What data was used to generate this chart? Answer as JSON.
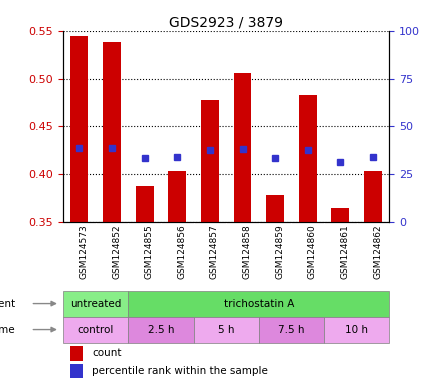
{
  "title": "GDS2923 / 3879",
  "samples": [
    "GSM124573",
    "GSM124852",
    "GSM124855",
    "GSM124856",
    "GSM124857",
    "GSM124858",
    "GSM124859",
    "GSM124860",
    "GSM124861",
    "GSM124862"
  ],
  "bar_values": [
    0.545,
    0.538,
    0.388,
    0.403,
    0.478,
    0.506,
    0.378,
    0.483,
    0.365,
    0.403
  ],
  "bar_base": 0.35,
  "percentile_values": [
    0.427,
    0.428,
    0.417,
    0.418,
    0.425,
    0.426,
    0.417,
    0.425,
    0.413,
    0.418
  ],
  "ylim_left": [
    0.35,
    0.55
  ],
  "ylim_right": [
    0,
    100
  ],
  "yticks_left": [
    0.35,
    0.4,
    0.45,
    0.5,
    0.55
  ],
  "yticks_right": [
    0,
    25,
    50,
    75,
    100
  ],
  "bar_color": "#cc0000",
  "dot_color": "#3333cc",
  "grid_color": "#000000",
  "agent_row": [
    {
      "label": "untreated",
      "span": [
        0,
        2
      ],
      "color": "#88ee88"
    },
    {
      "label": "trichostatin A",
      "span": [
        2,
        10
      ],
      "color": "#66dd66"
    }
  ],
  "time_row": [
    {
      "label": "control",
      "span": [
        0,
        2
      ],
      "color": "#eeaaee"
    },
    {
      "label": "2.5 h",
      "span": [
        2,
        4
      ],
      "color": "#dd88dd"
    },
    {
      "label": "5 h",
      "span": [
        4,
        6
      ],
      "color": "#eeaaee"
    },
    {
      "label": "7.5 h",
      "span": [
        6,
        8
      ],
      "color": "#dd88dd"
    },
    {
      "label": "10 h",
      "span": [
        8,
        10
      ],
      "color": "#eeaaee"
    }
  ],
  "legend_count_color": "#cc0000",
  "legend_pct_color": "#3333cc",
  "bar_width": 0.55,
  "tick_label_fontsize": 7,
  "axis_label_color_left": "#cc0000",
  "axis_label_color_right": "#3333cc",
  "bg_color": "#ffffff",
  "plot_bg_color": "#ffffff",
  "tick_bg_color": "#cccccc"
}
